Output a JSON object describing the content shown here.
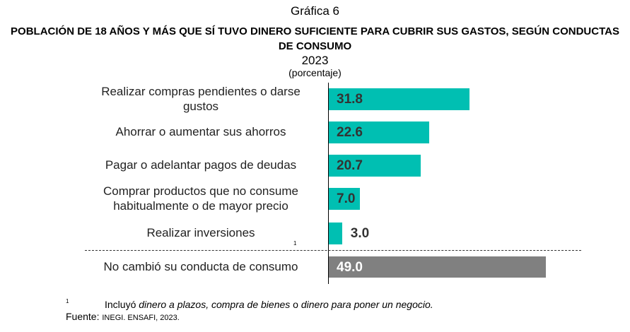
{
  "chart_data": {
    "type": "bar",
    "orientation": "horizontal",
    "label": "Gráfica 6",
    "title": "POBLACIÓN DE 18 AÑOS Y MÁS QUE SÍ TUVO DINERO SUFICIENTE PARA CUBRIR SUS GASTOS, SEGÚN CONDUCTAS DE CONSUMO",
    "year": "2023",
    "unit": "(porcentaje)",
    "categories": [
      "Realizar compras pendientes o darse gustos",
      "Ahorrar o aumentar sus ahorros",
      "Pagar o adelantar pagos de deudas",
      "Comprar productos que no consume habitualmente o de mayor precio",
      "Realizar inversiones",
      "No cambió su conducta de consumo"
    ],
    "values": [
      31.8,
      22.6,
      20.7,
      7.0,
      3.0,
      49.0
    ],
    "value_labels": [
      "31.8",
      "22.6",
      "20.7",
      "7.0",
      "3.0",
      "49.0"
    ],
    "colors": [
      "#00bfb2",
      "#00bfb2",
      "#00bfb2",
      "#00bfb2",
      "#00bfb2",
      "#808080"
    ],
    "footnote_marker": "1",
    "xlim": [
      0,
      60
    ]
  },
  "footnote": {
    "marker": "1",
    "prefix": "Incluyó ",
    "italic": "dinero a plazos, compra de bienes",
    "middle": " o ",
    "italic2": "dinero para poner un negocio.",
    "source_label": "Fuente: ",
    "source": "INEGI. ENSAFI, 2023."
  }
}
